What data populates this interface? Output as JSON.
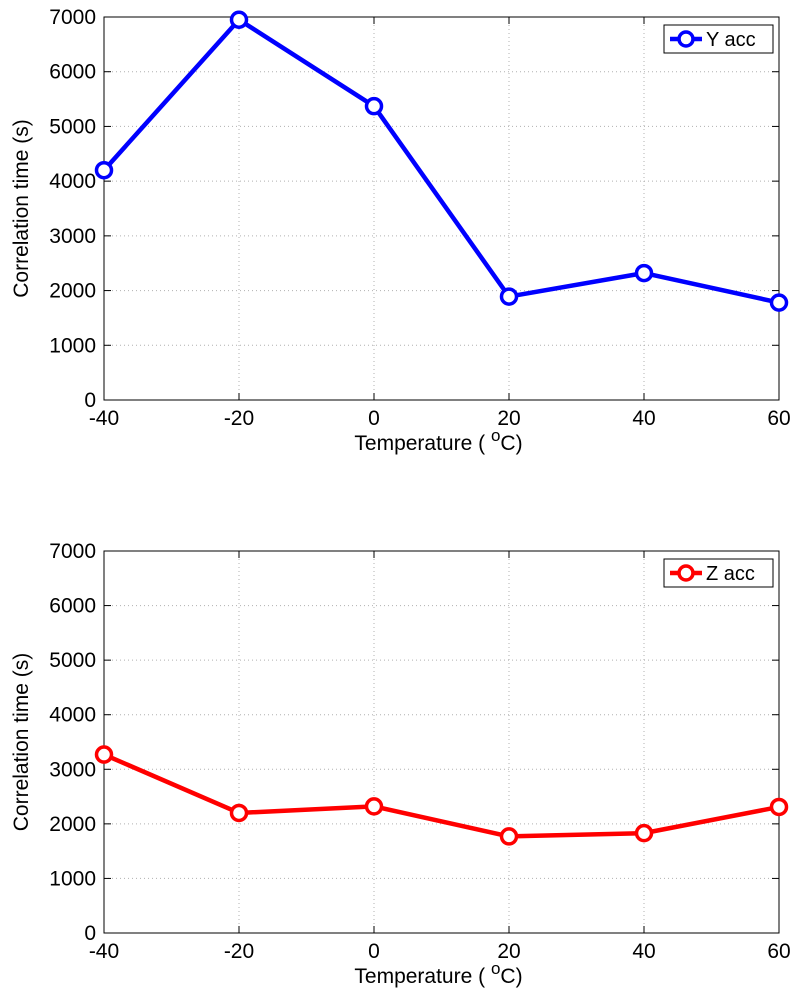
{
  "chart_data": [
    {
      "type": "line",
      "x": [
        -40,
        -20,
        0,
        20,
        40,
        60
      ],
      "series": [
        {
          "name": "Y acc",
          "values": [
            4200,
            6950,
            5370,
            1890,
            2320,
            1780
          ],
          "color": "#0000ff"
        }
      ],
      "xlabel": "Temperature ( ",
      "xlabel_sup": "o",
      "xlabel_unit": "C)",
      "ylabel": "Correlation time (s)",
      "xlim": [
        -40,
        60
      ],
      "ylim": [
        0,
        7000
      ],
      "xticks": [
        "-40",
        "-20",
        "0",
        "20",
        "40",
        "60"
      ],
      "yticks": [
        "0",
        "1000",
        "2000",
        "3000",
        "4000",
        "5000",
        "6000",
        "7000"
      ],
      "grid": true,
      "legend": "top-right"
    },
    {
      "type": "line",
      "x": [
        -40,
        -20,
        0,
        20,
        40,
        60
      ],
      "series": [
        {
          "name": "Z acc",
          "values": [
            3270,
            2200,
            2320,
            1770,
            1830,
            2310
          ],
          "color": "#ff0000"
        }
      ],
      "xlabel": "Temperature ( ",
      "xlabel_sup": "o",
      "xlabel_unit": "C)",
      "ylabel": "Correlation time (s)",
      "xlim": [
        -40,
        60
      ],
      "ylim": [
        0,
        7000
      ],
      "xticks": [
        "-40",
        "-20",
        "0",
        "20",
        "40",
        "60"
      ],
      "yticks": [
        "0",
        "1000",
        "2000",
        "3000",
        "4000",
        "5000",
        "6000",
        "7000"
      ],
      "grid": true,
      "legend": "top-right"
    }
  ]
}
